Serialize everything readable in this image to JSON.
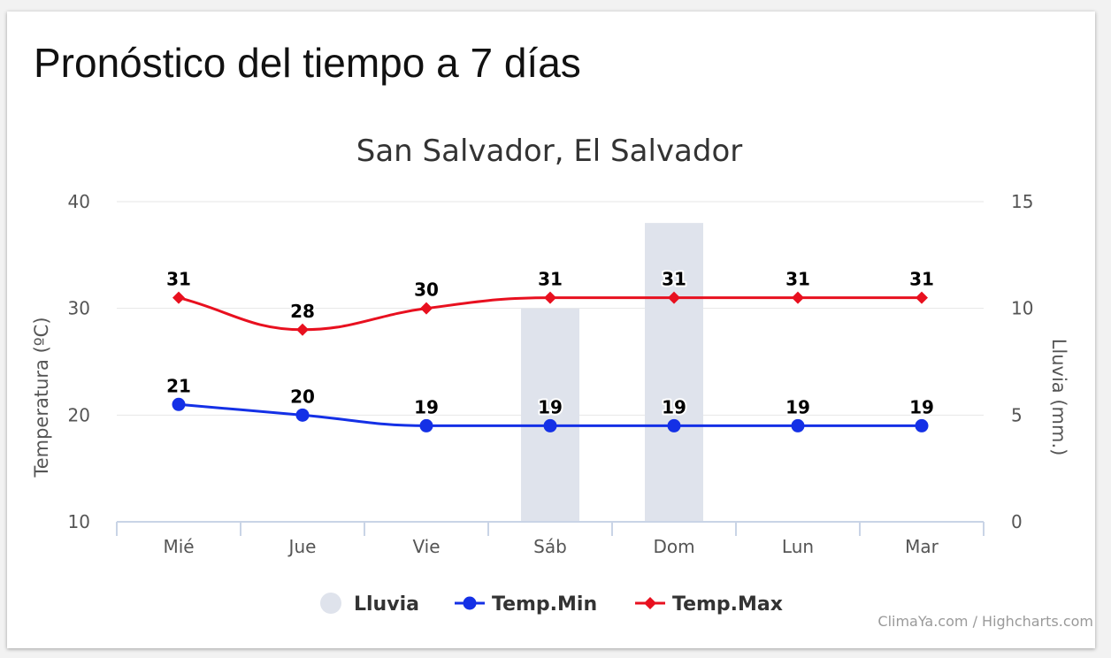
{
  "page": {
    "heading": "Pronóstico del tiempo a 7 días",
    "credits": "ClimaYa.com / Highcharts.com"
  },
  "chart_data": {
    "type": "bar",
    "title": "San Salvador, El Salvador",
    "categories": [
      "Mié",
      "Jue",
      "Vie",
      "Sáb",
      "Dom",
      "Lun",
      "Mar"
    ],
    "y_axis_left": {
      "label": "Temperatura (ºC)",
      "min": 10,
      "max": 40,
      "ticks": [
        10,
        20,
        30,
        40
      ]
    },
    "y_axis_right": {
      "label": "Lluvia (mm.)",
      "min": 0,
      "max": 15,
      "ticks": [
        0,
        5,
        10,
        15
      ]
    },
    "grid": true,
    "legend_position": "bottom-center",
    "series": [
      {
        "name": "Lluvia",
        "type": "column",
        "axis": "right",
        "color": "#dfe3ec",
        "values": [
          0,
          0,
          0,
          10,
          14,
          0,
          0
        ]
      },
      {
        "name": "Temp.Min",
        "type": "spline",
        "axis": "left",
        "color": "#1430e6",
        "marker": "circle",
        "values": [
          21,
          20,
          19,
          19,
          19,
          19,
          19
        ]
      },
      {
        "name": "Temp.Max",
        "type": "spline",
        "axis": "left",
        "color": "#e8101f",
        "marker": "diamond",
        "values": [
          31,
          28,
          30,
          31,
          31,
          31,
          31
        ]
      }
    ]
  }
}
